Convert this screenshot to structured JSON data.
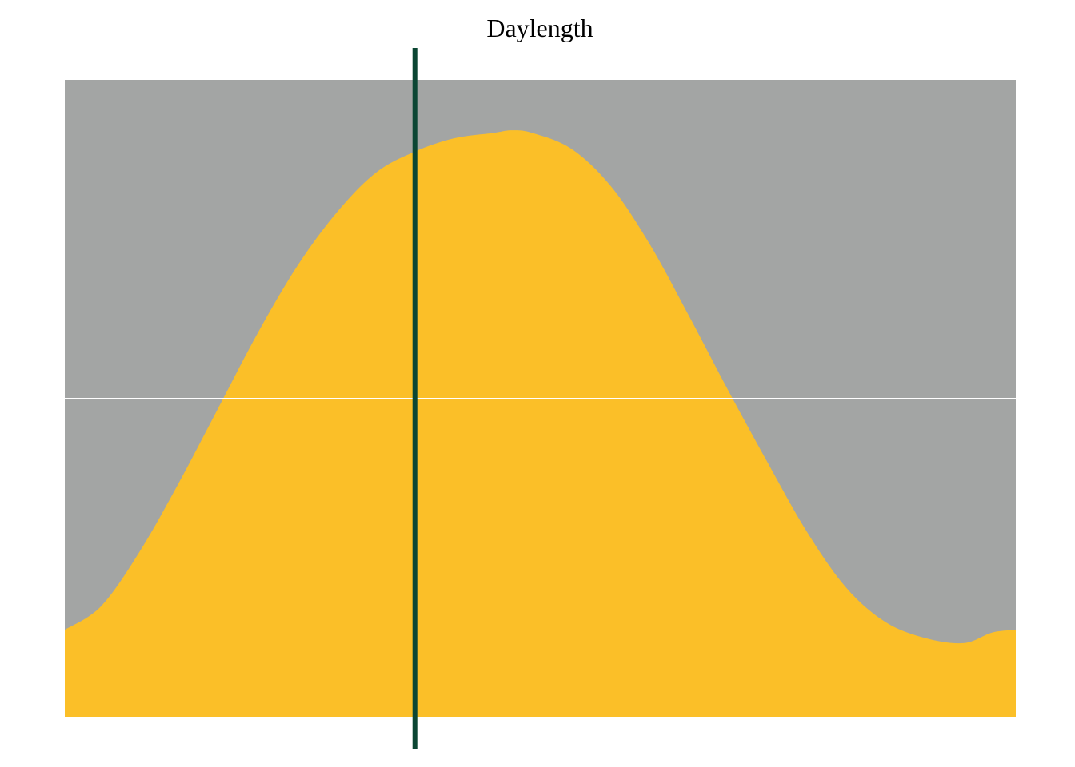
{
  "chart_data": {
    "type": "area",
    "title": "Daylength",
    "xlabel": "",
    "ylabel": "",
    "xlim": [
      1,
      365
    ],
    "ylim": [
      0,
      24
    ],
    "grid": false,
    "legend": "none",
    "series": [
      {
        "x": [
          1,
          15,
          30,
          45,
          60,
          75,
          90,
          105,
          120,
          135,
          150,
          165,
          172,
          180,
          195,
          210,
          225,
          240,
          255,
          270,
          285,
          300,
          315,
          330,
          345,
          356,
          365
        ],
        "values": [
          3.3,
          4.2,
          6.3,
          8.9,
          11.7,
          14.5,
          17.0,
          19.0,
          20.5,
          21.3,
          21.8,
          22.0,
          22.1,
          22.0,
          21.4,
          20.0,
          17.8,
          15.1,
          12.3,
          9.6,
          7.0,
          4.9,
          3.6,
          3.0,
          2.8,
          3.2,
          3.3
        ]
      }
    ],
    "reference_lines": {
      "horizontal_y": 12,
      "vertical_x": 135
    },
    "colors": {
      "daylight": "#FBBF28",
      "night": "#A3A5A4",
      "horizontal_line": "#FFFFFF",
      "vertical_line": "#0B4633"
    }
  }
}
